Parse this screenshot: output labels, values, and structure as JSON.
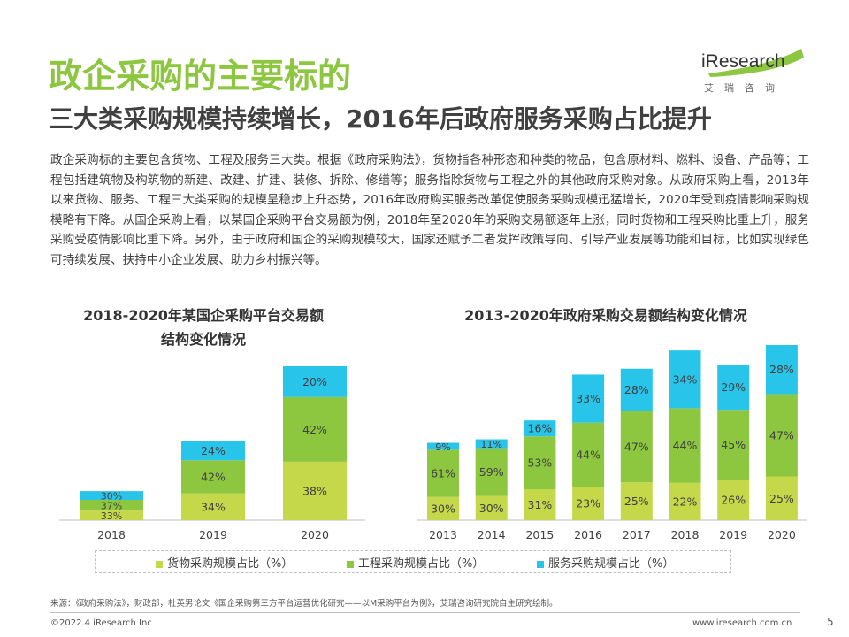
{
  "header": {
    "title": "政企采购的主要标的",
    "subtitle": "三大类采购规模持续增长，2016年后政府服务采购占比提升"
  },
  "logo": {
    "name": "iResearch",
    "chinese": "艾瑞咨询",
    "color": "#8dc63f"
  },
  "body_text": "政企采购标的主要包含货物、工程及服务三大类。根据《政府采购法》，货物指各种形态和种类的物品，包含原材料、燃料、设备、产品等；工程包括建筑物及构筑物的新建、改建、扩建、装修、拆除、修缮等；服务指除货物与工程之外的其他政府采购对象。从政府采购上看，2013年以来货物、服务、工程三大类采购的规模呈稳步上升态势，2016年政府购买服务改革促使服务采购规模迅猛增长，2020年受到疫情影响采购规模略有下降。从国企采购上看，以某国企采购平台交易额为例，2018年至2020年的采购交易额逐年上涨，同时货物和工程采购比重上升，服务采购受疫情影响比重下降。另外，由于政府和国企的采购规模较大，国家还赋予二者发挥政策导向、引导产业发展等功能和目标，比如实现绿色可持续发展、扶持中小企业发展、助力乡村振兴等。",
  "colors": {
    "goods": "#c5d84a",
    "engineering": "#8dc63f",
    "services": "#29c4ea",
    "title_green": "#8dc63f"
  },
  "chart_data": [
    {
      "type": "bar",
      "stacked": true,
      "title": "2018-2020年某国企采购平台交易额结构变化情况",
      "title_lines": [
        "2018-2020年某国企采购平台交易额",
        "结构变化情况"
      ],
      "categories": [
        "2018",
        "2019",
        "2020"
      ],
      "totals_relative": [
        0.189,
        0.512,
        1.0
      ],
      "series": [
        {
          "name": "货物采购规模占比（%）",
          "values": [
            33,
            34,
            38
          ]
        },
        {
          "name": "工程采购规模占比（%）",
          "values": [
            37,
            42,
            42
          ]
        },
        {
          "name": "服务采购规模占比（%）",
          "values": [
            30,
            24,
            20
          ]
        }
      ]
    },
    {
      "type": "bar",
      "stacked": true,
      "title": "2013-2020年政府采购交易额结构变化情况",
      "categories": [
        "2013",
        "2014",
        "2015",
        "2016",
        "2017",
        "2018",
        "2019",
        "2020"
      ],
      "totals_relative": [
        0.442,
        0.462,
        0.57,
        0.831,
        0.865,
        0.969,
        0.888,
        1.0
      ],
      "series": [
        {
          "name": "货物采购规模占比（%）",
          "values": [
            30,
            30,
            31,
            23,
            25,
            22,
            26,
            25
          ]
        },
        {
          "name": "工程采购规模占比（%）",
          "values": [
            61,
            59,
            53,
            44,
            47,
            44,
            45,
            47
          ]
        },
        {
          "name": "服务采购规模占比（%）",
          "values": [
            9,
            11,
            16,
            33,
            28,
            34,
            29,
            28
          ]
        }
      ]
    }
  ],
  "legend": [
    {
      "label": "货物采购规模占比（%）",
      "color": "#c5d84a"
    },
    {
      "label": "工程采购规模占比（%）",
      "color": "#8dc63f"
    },
    {
      "label": "服务采购规模占比（%）",
      "color": "#29c4ea"
    }
  ],
  "source": "来源：《政府采购法》，财政部，杜英男论文《国企采购第三方平台运营优化研究——以M采购平台为例》，艾瑞咨询研究院自主研究绘制。",
  "footer": {
    "copyright": "©2022.4 iResearch Inc",
    "website": "www.iresearch.com.cn",
    "page": "5"
  }
}
